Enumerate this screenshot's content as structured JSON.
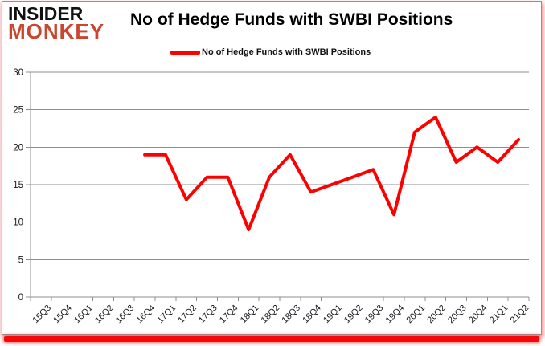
{
  "logo": {
    "line1": "INSIDER",
    "line2": "MONKEY",
    "color": "#c9462f"
  },
  "header": {
    "title": "No of Hedge Funds with SWBI Positions"
  },
  "legend": {
    "label": "No of Hedge Funds with SWBI Positions",
    "line_color": "#ff0000"
  },
  "chart_data": {
    "type": "line",
    "title": "No of Hedge Funds with SWBI Positions",
    "categories": [
      "15Q3",
      "15Q4",
      "16Q1",
      "16Q2",
      "16Q3",
      "16Q4",
      "17Q1",
      "17Q2",
      "17Q3",
      "17Q4",
      "18Q1",
      "18Q2",
      "18Q3",
      "18Q4",
      "19Q1",
      "19Q2",
      "19Q3",
      "19Q4",
      "20Q1",
      "20Q2",
      "20Q3",
      "20Q4",
      "21Q1",
      "21Q2"
    ],
    "series": [
      {
        "name": "No of Hedge Funds with SWBI Positions",
        "color": "#ff0000",
        "values": [
          null,
          null,
          null,
          null,
          null,
          19,
          19,
          13,
          16,
          16,
          9,
          16,
          19,
          14,
          15,
          16,
          17,
          11,
          22,
          24,
          18,
          20,
          18,
          21
        ]
      }
    ],
    "xlabel": "",
    "ylabel": "",
    "ylim": [
      0,
      30
    ],
    "ytick_step": 5,
    "grid": true,
    "legend_position": "top"
  },
  "style": {
    "grid_color": "#8f8f8f",
    "axis_color": "#8f8f8f",
    "tick_label_color": "#17181d",
    "background": "#ffffff",
    "bottom_bar_color": "#f70808"
  }
}
